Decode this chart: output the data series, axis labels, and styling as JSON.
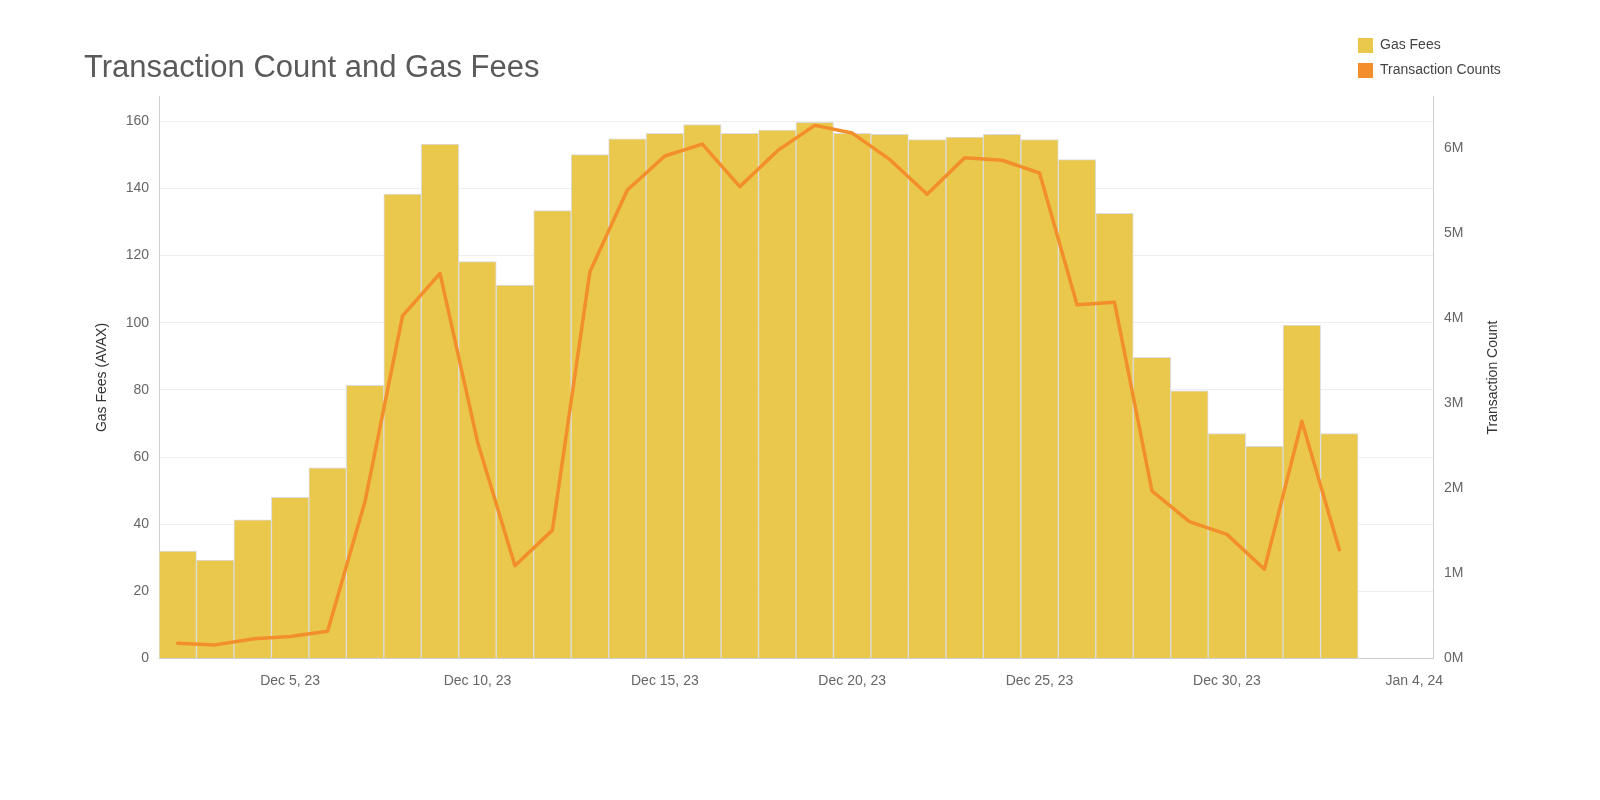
{
  "chart_data": {
    "type": "bar",
    "title": "Transaction Count and Gas Fees",
    "ylabel": "Gas Fees (AVAX)",
    "y2label": "Transaction Count",
    "categories": [
      null,
      null,
      null,
      "Dec 5, 23",
      null,
      null,
      null,
      null,
      "Dec 10, 23",
      null,
      null,
      null,
      null,
      "Dec 15, 23",
      null,
      null,
      null,
      null,
      "Dec 20, 23",
      null,
      null,
      null,
      null,
      "Dec 25, 23",
      null,
      null,
      null,
      null,
      "Dec 30, 23",
      null,
      null,
      null,
      null,
      "Jan 4, 24"
    ],
    "ylim": [
      0,
      167.4
    ],
    "yticks": [
      0,
      20,
      40,
      60,
      80,
      100,
      120,
      140,
      160
    ],
    "y2lim": [
      0,
      6610000
    ],
    "y2ticks": [
      {
        "value": 0,
        "label": "0M"
      },
      {
        "value": 1000000,
        "label": "1M"
      },
      {
        "value": 2000000,
        "label": "2M"
      },
      {
        "value": 3000000,
        "label": "3M"
      },
      {
        "value": 4000000,
        "label": "4M"
      },
      {
        "value": 5000000,
        "label": "5M"
      },
      {
        "value": 6000000,
        "label": "6M"
      }
    ],
    "grid": "y",
    "legend": "top right",
    "series": [
      {
        "name": "Gas Fees",
        "color": "#eac84b",
        "values": [
          32,
          29.3,
          41.3,
          48,
          56.8,
          81.4,
          138.3,
          153.2,
          118.2,
          111.2,
          133.4,
          150.1,
          154.8,
          156.4,
          159.0,
          156.4,
          157.4,
          159.7,
          156.4,
          156.1,
          154.6,
          155.3,
          156.1,
          154.6,
          148.6,
          132.6,
          89.7,
          79.7,
          67,
          63.2,
          99.3,
          67,
          null,
          null
        ]
      },
      {
        "name": "Transaction Counts",
        "type": "line",
        "axis": "y2",
        "color": "#f28e2b",
        "values": [
          180000,
          160000,
          230000,
          260000,
          320000,
          1850000,
          4030000,
          4530000,
          2550000,
          1090000,
          1510000,
          4550000,
          5510000,
          5910000,
          6050000,
          5550000,
          5970000,
          6270000,
          6180000,
          5870000,
          5460000,
          5890000,
          5860000,
          5710000,
          4160000,
          4190000,
          1970000,
          1610000,
          1460000,
          1050000,
          2790000,
          1280000,
          null,
          null
        ]
      }
    ]
  }
}
